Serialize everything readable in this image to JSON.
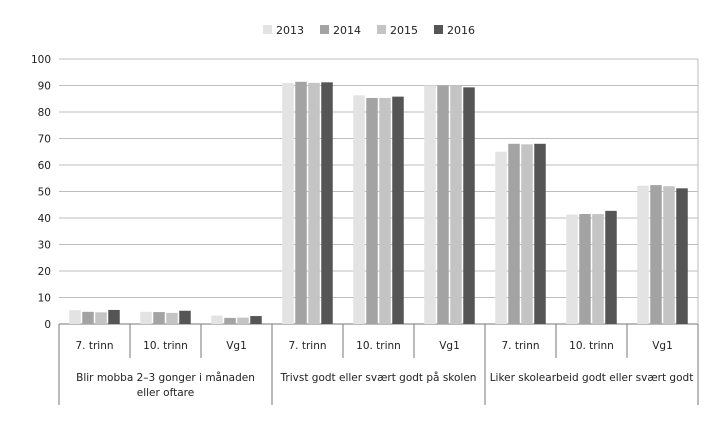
{
  "chart_data": {
    "type": "bar",
    "title": "",
    "xlabel": "",
    "ylabel": "",
    "ylim": [
      0,
      100
    ],
    "yticks": [
      0,
      10,
      20,
      30,
      40,
      50,
      60,
      70,
      80,
      90,
      100
    ],
    "grid": true,
    "legend_position": "top-center",
    "groups": [
      {
        "label": "Blir mobba 2–3 gonger i månaden",
        "label_line2": "eller oftare",
        "categories": [
          "7. trinn",
          "10. trinn",
          "Vg1"
        ]
      },
      {
        "label": "Trivst godt eller svært godt på skolen",
        "label_line2": "",
        "categories": [
          "7. trinn",
          "10. trinn",
          "Vg1"
        ]
      },
      {
        "label": "Liker skolearbeid godt eller svært godt",
        "label_line2": "",
        "categories": [
          "7. trinn",
          "10. trinn",
          "Vg1"
        ]
      }
    ],
    "categories": [
      "7. trinn",
      "10. trinn",
      "Vg1",
      "7. trinn",
      "10. trinn",
      "Vg1",
      "7. trinn",
      "10. trinn",
      "Vg1"
    ],
    "series": [
      {
        "name": "2013",
        "color": "#e3e3e3",
        "values": [
          5.2,
          4.6,
          3.2,
          90.9,
          86.3,
          90.0,
          65.0,
          41.3,
          52.2
        ]
      },
      {
        "name": "2014",
        "color": "#a3a3a3",
        "values": [
          4.6,
          4.5,
          2.3,
          91.4,
          85.3,
          90.0,
          68.0,
          41.5,
          52.4
        ]
      },
      {
        "name": "2015",
        "color": "#c4c4c4",
        "values": [
          4.4,
          4.2,
          2.4,
          91.0,
          85.3,
          90.0,
          67.8,
          41.5,
          52.0
        ]
      },
      {
        "name": "2016",
        "color": "#555555",
        "values": [
          5.3,
          5.0,
          3.0,
          91.2,
          85.8,
          89.3,
          68.0,
          42.7,
          51.2
        ]
      }
    ]
  }
}
